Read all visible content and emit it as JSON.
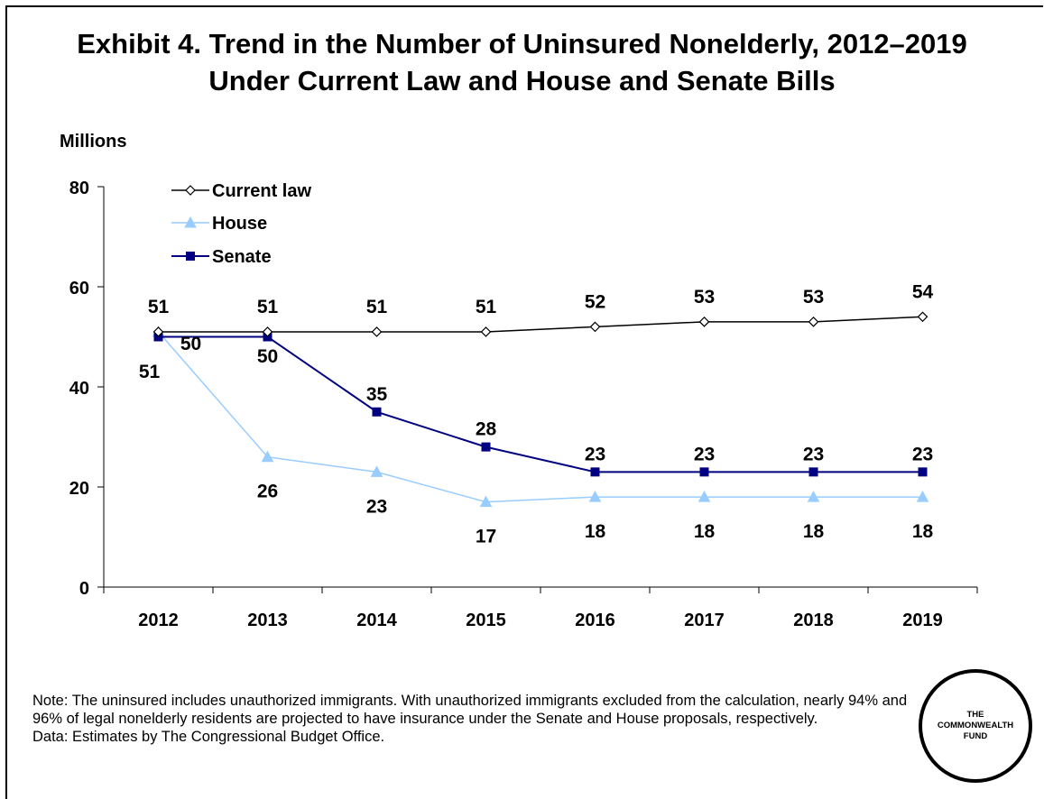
{
  "title_line1": "Exhibit 4. Trend in the Number of Uninsured Nonelderly, 2012–2019",
  "title_line2": "Under Current Law and House and Senate Bills",
  "chart_data": {
    "type": "line",
    "ylabel": "Millions",
    "xlabel": "",
    "ylim": [
      0,
      80
    ],
    "yticks": [
      "0",
      "20",
      "40",
      "60",
      "80"
    ],
    "categories": [
      "2012",
      "2013",
      "2014",
      "2015",
      "2016",
      "2017",
      "2018",
      "2019"
    ],
    "grid": false,
    "legend_position": "top-left",
    "series": [
      {
        "name": "Current law",
        "values": [
          51,
          51,
          51,
          51,
          52,
          53,
          53,
          54
        ],
        "labels": [
          "51",
          "51",
          "51",
          "51",
          "52",
          "53",
          "53",
          "54"
        ],
        "color": "#000000",
        "marker": "diamond-open"
      },
      {
        "name": "House",
        "values": [
          51,
          26,
          23,
          17,
          18,
          18,
          18,
          18
        ],
        "labels": [
          "51",
          "26",
          "23",
          "17",
          "18",
          "18",
          "18",
          "18"
        ],
        "color": "#99ccff",
        "marker": "triangle"
      },
      {
        "name": "Senate",
        "values": [
          50,
          50,
          35,
          28,
          23,
          23,
          23,
          23
        ],
        "labels": [
          "50",
          "50",
          "35",
          "28",
          "23",
          "23",
          "23",
          "23"
        ],
        "color": "#000080",
        "marker": "square"
      }
    ]
  },
  "note_line": "Note: The uninsured includes unauthorized immigrants. With unauthorized immigrants excluded from the calculation, nearly 94% and 96% of legal nonelderly residents are projected to have insurance under the Senate and House proposals, respectively.",
  "data_line": "Data: Estimates by The Congressional Budget Office.",
  "logo": {
    "line1": "THE",
    "line2": "COMMONWEALTH",
    "line3": "FUND"
  }
}
